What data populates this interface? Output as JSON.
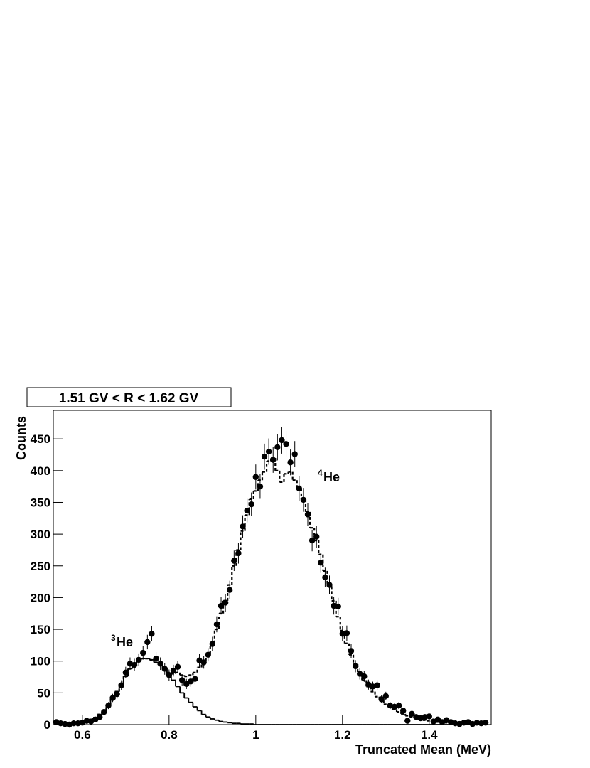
{
  "chart_data": {
    "type": "histogram",
    "title": "1.51 GV < R < 1.62 GV",
    "x_label": "Truncated Mean (MeV)",
    "y_label": "Counts",
    "xlim": [
      0.533,
      1.543
    ],
    "ylim": [
      0,
      495
    ],
    "xticks": [
      0.6,
      0.8,
      1,
      1.2,
      1.4
    ],
    "yticks": [
      0,
      50,
      100,
      150,
      200,
      250,
      300,
      350,
      400,
      450
    ],
    "annotations": [
      {
        "sup": "3",
        "text": "He"
      },
      {
        "sup": "4",
        "text": "He"
      }
    ],
    "bins": [
      0.535,
      0.545,
      0.555,
      0.565,
      0.575,
      0.585,
      0.595,
      0.605,
      0.615,
      0.625,
      0.635,
      0.645,
      0.655,
      0.665,
      0.675,
      0.685,
      0.695,
      0.705,
      0.715,
      0.725,
      0.735,
      0.745,
      0.755,
      0.765,
      0.775,
      0.785,
      0.795,
      0.805,
      0.815,
      0.825,
      0.835,
      0.845,
      0.855,
      0.865,
      0.875,
      0.885,
      0.895,
      0.905,
      0.915,
      0.925,
      0.935,
      0.945,
      0.955,
      0.965,
      0.975,
      0.985,
      0.995,
      1.005,
      1.015,
      1.025,
      1.035,
      1.045,
      1.055,
      1.065,
      1.075,
      1.085,
      1.095,
      1.105,
      1.115,
      1.125,
      1.135,
      1.145,
      1.155,
      1.165,
      1.175,
      1.185,
      1.195,
      1.205,
      1.215,
      1.225,
      1.235,
      1.245,
      1.255,
      1.265,
      1.275,
      1.285,
      1.295,
      1.305,
      1.315,
      1.325,
      1.335,
      1.345,
      1.355,
      1.365,
      1.375,
      1.385,
      1.395,
      1.405,
      1.415,
      1.425,
      1.435,
      1.445,
      1.455,
      1.465,
      1.475,
      1.485,
      1.495,
      1.505,
      1.515,
      1.525,
      1.535
    ],
    "series": [
      {
        "style": "points",
        "color": "#000000",
        "values": [
          4,
          2,
          1,
          0,
          2,
          2,
          3,
          6,
          5,
          8,
          12,
          20,
          30,
          42,
          48,
          62,
          82,
          96,
          94,
          102,
          113,
          130,
          143,
          104,
          96,
          88,
          78,
          85,
          91,
          70,
          64,
          68,
          72,
          101,
          98,
          110,
          127,
          158,
          187,
          192,
          212,
          258,
          270,
          312,
          337,
          347,
          390,
          375,
          422,
          430,
          417,
          437,
          448,
          442,
          413,
          426,
          372,
          354,
          331,
          290,
          296,
          255,
          232,
          220,
          187,
          186,
          143,
          144,
          116,
          92,
          80,
          76,
          63,
          60,
          62,
          40,
          45,
          30,
          28,
          30,
          22,
          6,
          17,
          12,
          10,
          12,
          13,
          5,
          8,
          4,
          7,
          4,
          2,
          1,
          3,
          4,
          1,
          3,
          2,
          3
        ],
        "errors": [
          2,
          1.4,
          1,
          0,
          1.4,
          1.4,
          1.7,
          2.4,
          2.2,
          2.8,
          3.5,
          4.5,
          5.5,
          6.5,
          6.9,
          7.9,
          9.1,
          9.8,
          9.7,
          10.1,
          10.6,
          11.4,
          12,
          10.2,
          9.8,
          9.4,
          8.8,
          9.2,
          9.5,
          8.4,
          8,
          8.2,
          8.5,
          10,
          9.9,
          10.5,
          11.3,
          12.6,
          13.7,
          13.9,
          14.6,
          16.1,
          16.4,
          17.7,
          18.4,
          18.6,
          19.7,
          19.4,
          20.5,
          20.7,
          20.4,
          20.9,
          21.2,
          21,
          20.3,
          20.6,
          19.3,
          18.8,
          18.2,
          17,
          17.2,
          16,
          15.2,
          14.8,
          13.7,
          13.6,
          12,
          12,
          10.8,
          9.6,
          8.9,
          8.7,
          7.9,
          7.7,
          7.9,
          6.3,
          6.7,
          5.5,
          5.3,
          5.5,
          4.7,
          2.4,
          4.1,
          3.5,
          3.2,
          3.5,
          3.6,
          2.2,
          2.8,
          2,
          2.6,
          2,
          1.4,
          1,
          1.7,
          2,
          1,
          1.7,
          1.4,
          1.7
        ]
      },
      {
        "style": "solid",
        "color": "#000000",
        "values": [
          1,
          1,
          1,
          1,
          2,
          3,
          4,
          6,
          8,
          11,
          16,
          22,
          30,
          40,
          52,
          64,
          76,
          88,
          96,
          102,
          104,
          104,
          102,
          98,
          94,
          86,
          80,
          70,
          60,
          50,
          42,
          35,
          28,
          22,
          16,
          12,
          9,
          7,
          5,
          4,
          3,
          2,
          2,
          1,
          1,
          1,
          0,
          0,
          0,
          0,
          0,
          0,
          0,
          0,
          0,
          0,
          0,
          0,
          0,
          0,
          0,
          0,
          0,
          0,
          0,
          0,
          0,
          0,
          0,
          0,
          0,
          0,
          0,
          0,
          0,
          0,
          0,
          0,
          0,
          0,
          0,
          0,
          0,
          0,
          0,
          0,
          0,
          0,
          0,
          0,
          0,
          0,
          0,
          0,
          0,
          0,
          0,
          0,
          0,
          0
        ]
      },
      {
        "style": "dashed",
        "color": "#000000",
        "values": [
          1,
          1,
          1,
          1,
          2,
          3,
          4,
          6,
          8,
          11,
          16,
          22,
          30,
          40,
          52,
          64,
          76,
          88,
          96,
          102,
          104,
          104,
          102,
          98,
          94,
          88,
          82,
          80,
          82,
          78,
          76,
          78,
          82,
          90,
          100,
          112,
          128,
          150,
          175,
          195,
          220,
          250,
          275,
          305,
          330,
          355,
          368,
          385,
          398,
          415,
          420,
          400,
          382,
          395,
          398,
          385,
          372,
          355,
          335,
          310,
          290,
          268,
          242,
          218,
          195,
          170,
          148,
          128,
          110,
          95,
          82,
          70,
          60,
          52,
          44,
          38,
          32,
          28,
          24,
          20,
          17,
          14,
          12,
          10,
          8,
          7,
          6,
          5,
          4,
          3,
          3,
          2,
          2,
          2,
          1,
          1,
          1,
          1,
          1,
          1
        ]
      }
    ]
  }
}
